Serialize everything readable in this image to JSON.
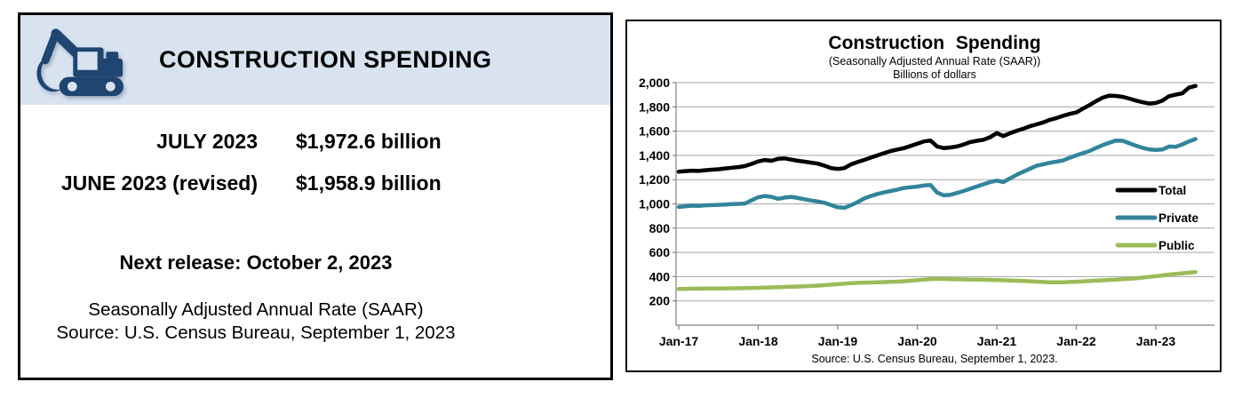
{
  "left_panel": {
    "header": {
      "title": "CONSTRUCTION SPENDING",
      "icon": "excavator-icon"
    },
    "rows": [
      {
        "label": "JULY 2023",
        "value": "$1,972.6 billion"
      },
      {
        "label": "JUNE 2023 (revised)",
        "value": "$1,958.9 billion"
      }
    ],
    "next_release": "Next release: October 2, 2023",
    "note": "Seasonally Adjusted Annual Rate (SAAR)",
    "source": "Source: U.S. Census Bureau, September 1, 2023"
  },
  "chart": {
    "title": "Construction Spending",
    "subtitle1": "(Seasonally Adjusted Annual Rate (SAAR))",
    "subtitle2": "Billions of dollars",
    "source": "Source: U.S. Census Bureau, September 1, 2023."
  },
  "chart_data": {
    "type": "line",
    "title": "Construction Spending",
    "subtitle": "(Seasonally Adjusted Annual Rate (SAAR)) — Billions of dollars",
    "x_range": "Monthly, Jan-2017 through Jul-2023",
    "x_tick_labels": [
      "Jan-17",
      "Jan-18",
      "Jan-19",
      "Jan-20",
      "Jan-21",
      "Jan-22",
      "Jan-23"
    ],
    "ylim": [
      0,
      2000
    ],
    "y_ticks": [
      200,
      400,
      600,
      800,
      1000,
      1200,
      1400,
      1600,
      1800,
      2000
    ],
    "grid": true,
    "legend_position": "inside-right",
    "series": [
      {
        "name": "Total",
        "color": "#000000",
        "values": [
          1265,
          1270,
          1274,
          1272,
          1278,
          1282,
          1286,
          1292,
          1298,
          1303,
          1312,
          1330,
          1350,
          1362,
          1355,
          1372,
          1375,
          1365,
          1355,
          1348,
          1340,
          1332,
          1315,
          1295,
          1288,
          1295,
          1326,
          1345,
          1363,
          1382,
          1400,
          1418,
          1436,
          1448,
          1460,
          1478,
          1497,
          1515,
          1522,
          1473,
          1460,
          1465,
          1473,
          1490,
          1510,
          1520,
          1529,
          1550,
          1584,
          1559,
          1583,
          1602,
          1620,
          1640,
          1656,
          1672,
          1693,
          1708,
          1726,
          1742,
          1754,
          1785,
          1815,
          1848,
          1876,
          1893,
          1890,
          1883,
          1868,
          1852,
          1838,
          1827,
          1832,
          1852,
          1888,
          1900,
          1912,
          1958.9,
          1972.6
        ]
      },
      {
        "name": "Private",
        "color": "#31849B",
        "values": [
          975,
          980,
          985,
          983,
          988,
          990,
          992,
          995,
          998,
          1000,
          1003,
          1030,
          1055,
          1065,
          1058,
          1042,
          1052,
          1058,
          1048,
          1038,
          1028,
          1020,
          1009,
          990,
          972,
          968,
          990,
          1015,
          1045,
          1065,
          1082,
          1095,
          1106,
          1118,
          1131,
          1138,
          1143,
          1152,
          1155,
          1094,
          1070,
          1075,
          1090,
          1106,
          1125,
          1143,
          1162,
          1180,
          1192,
          1180,
          1210,
          1240,
          1265,
          1290,
          1314,
          1326,
          1339,
          1348,
          1358,
          1380,
          1400,
          1418,
          1436,
          1462,
          1485,
          1505,
          1522,
          1520,
          1500,
          1480,
          1462,
          1449,
          1445,
          1448,
          1473,
          1470,
          1490,
          1515,
          1535
        ]
      },
      {
        "name": "Public",
        "color": "#9BBB59",
        "values": [
          298,
          300,
          301,
          301,
          302,
          302,
          302,
          303,
          304,
          305,
          306,
          307,
          308,
          310,
          311,
          313,
          315,
          317,
          319,
          321,
          323,
          326,
          330,
          334,
          338,
          342,
          346,
          349,
          351,
          352,
          353,
          355,
          357,
          359,
          362,
          366,
          371,
          376,
          380,
          382,
          381,
          379,
          378,
          377,
          376,
          375,
          374,
          373,
          372,
          370,
          368,
          366,
          364,
          362,
          359,
          356,
          354,
          353,
          354,
          356,
          358,
          361,
          364,
          367,
          370,
          373,
          376,
          379,
          383,
          387,
          392,
          398,
          404,
          410,
          417,
          423,
          428,
          433,
          438
        ]
      }
    ]
  },
  "colors": {
    "header_band": "#d9e3f0",
    "icon_navy": "#1f4571",
    "gridline": "#a6a6a6",
    "axis": "#808080"
  }
}
